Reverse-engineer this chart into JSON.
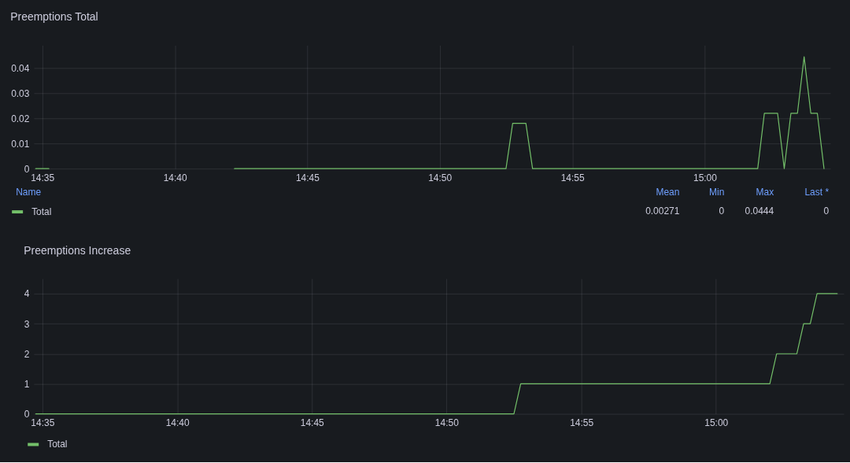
{
  "chart_data": [
    {
      "type": "line",
      "title": "Preemptions Total",
      "x": [
        14.5792,
        14.5875,
        14.65,
        14.7042,
        14.875,
        14.8792,
        14.8875,
        14.8917,
        15.0333,
        15.0375,
        15.0458,
        15.05,
        15.0542,
        15.0583,
        15.0625,
        15.0667,
        15.0708,
        15.075
      ],
      "series": [
        {
          "name": "Total",
          "color": "#73bf69",
          "values": [
            0,
            0,
            null,
            0,
            0,
            0.018,
            0.018,
            0,
            0,
            0.022,
            0.022,
            0,
            0.022,
            0.022,
            0.0444,
            0.022,
            0.022,
            0
          ]
        }
      ],
      "xlim": [
        14.578,
        15.079
      ],
      "xticks": [
        {
          "value": 14.5833,
          "label": "14:35"
        },
        {
          "value": 14.6667,
          "label": "14:40"
        },
        {
          "value": 14.75,
          "label": "14:45"
        },
        {
          "value": 14.8333,
          "label": "14:50"
        },
        {
          "value": 14.9167,
          "label": "14:55"
        },
        {
          "value": 15,
          "label": "15:00"
        }
      ],
      "ylim": [
        0,
        0.049
      ],
      "yticks": [
        0,
        0.01,
        0.02,
        0.03,
        0.04
      ],
      "grid": true,
      "legend": "bottom left",
      "annotations": [
        "Name",
        "Mean",
        "Min",
        "Max",
        "Last *",
        "0.00271",
        "0",
        "0.0444",
        "0"
      ]
    },
    {
      "type": "line",
      "title": "Preemptions Increase",
      "x": [
        14.5792,
        14.875,
        14.8792,
        15.0333,
        15.0375,
        15.05,
        15.0542,
        15.0583,
        15.0625,
        15.075
      ],
      "series": [
        {
          "name": "Total",
          "color": "#73bf69",
          "values": [
            0,
            0,
            1,
            1,
            2,
            2,
            3,
            3,
            4,
            4
          ]
        }
      ],
      "xlim": [
        14.578,
        15.079
      ],
      "xticks": [
        {
          "value": 14.5833,
          "label": "14:35"
        },
        {
          "value": 14.6667,
          "label": "14:40"
        },
        {
          "value": 14.75,
          "label": "14:45"
        },
        {
          "value": 14.8333,
          "label": "14:50"
        },
        {
          "value": 14.9167,
          "label": "14:55"
        },
        {
          "value": 15,
          "label": "15:00"
        }
      ],
      "ylim": [
        0,
        4.5
      ],
      "yticks": [
        0,
        1,
        2,
        3,
        4
      ],
      "grid": true,
      "legend": "bottom left"
    }
  ]
}
